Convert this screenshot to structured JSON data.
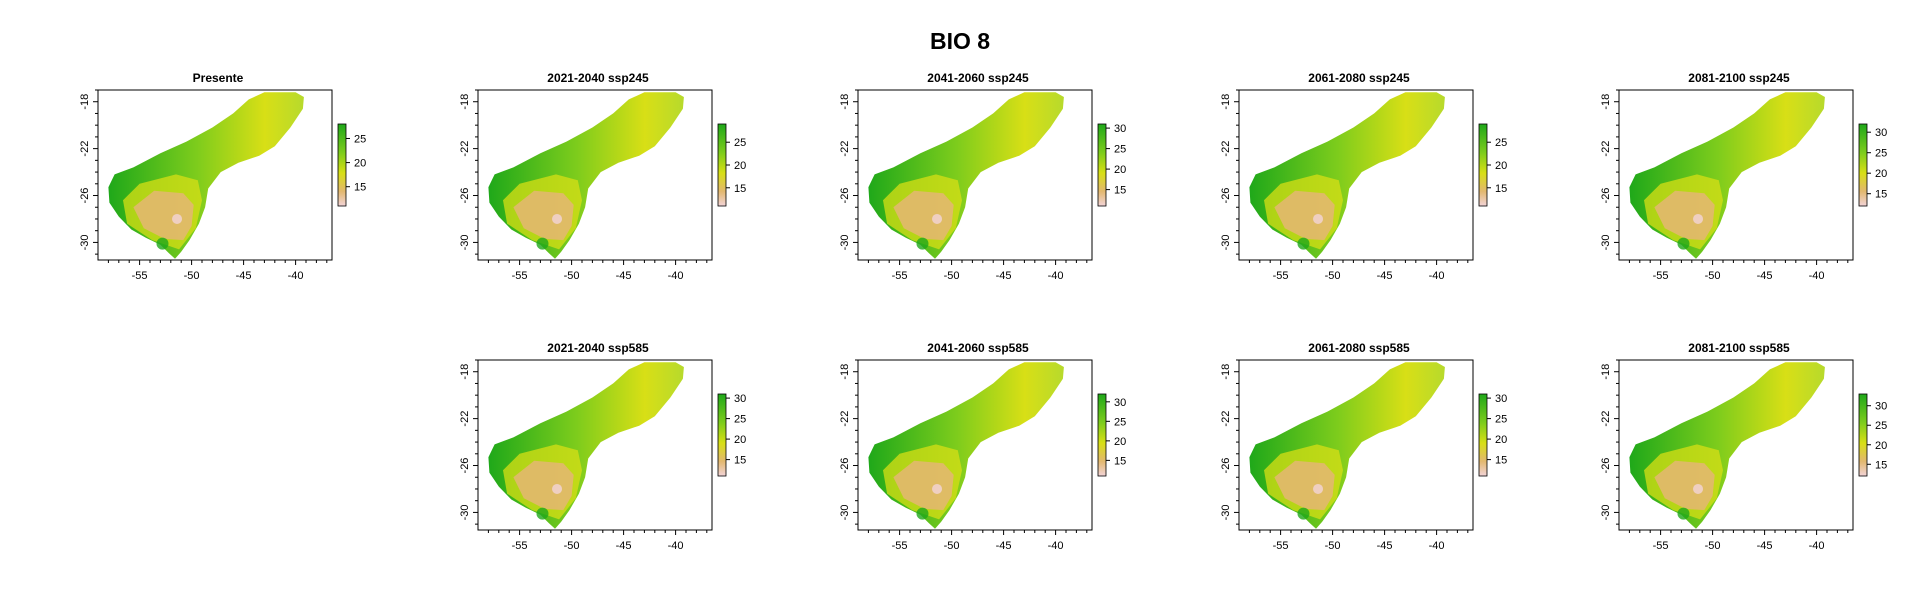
{
  "title": "BIO 8",
  "x_axis_ticks": [
    "-55",
    "-50",
    "-45",
    "-40"
  ],
  "y_axis_ticks": [
    "-18",
    "-22",
    "-26",
    "-30"
  ],
  "x_tick_values": [
    -55,
    -50,
    -45,
    -40
  ],
  "y_tick_values": [
    -18,
    -22,
    -26,
    -30
  ],
  "xlim": [
    -59,
    -36.5
  ],
  "ylim": [
    -31.5,
    -17
  ],
  "colors": {
    "high": "#1fa81a",
    "mid_high": "#7dcc1c",
    "mid": "#d8df16",
    "mid_low": "#e2b86e",
    "low": "#f2d4d8"
  },
  "panels": [
    {
      "title": "Presente",
      "legend_ticks": [
        "25",
        "20",
        "15"
      ],
      "legend_values": [
        25,
        20,
        15
      ],
      "legend_range": [
        11,
        28
      ]
    },
    {
      "title": "2021-2040 ssp245",
      "legend_ticks": [
        "25",
        "20",
        "15"
      ],
      "legend_values": [
        25,
        20,
        15
      ],
      "legend_range": [
        11,
        29
      ]
    },
    {
      "title": "2041-2060 ssp245",
      "legend_ticks": [
        "30",
        "25",
        "20",
        "15"
      ],
      "legend_values": [
        30,
        25,
        20,
        15
      ],
      "legend_range": [
        11,
        31
      ]
    },
    {
      "title": "2061-2080 ssp245",
      "legend_ticks": [
        "25",
        "20",
        "15"
      ],
      "legend_values": [
        25,
        20,
        15
      ],
      "legend_range": [
        11,
        29
      ]
    },
    {
      "title": "2081-2100 ssp245",
      "legend_ticks": [
        "30",
        "25",
        "20",
        "15"
      ],
      "legend_values": [
        30,
        25,
        20,
        15
      ],
      "legend_range": [
        12,
        32
      ]
    },
    {
      "title": "2021-2040 ssp585",
      "legend_ticks": [
        "30",
        "25",
        "20",
        "15"
      ],
      "legend_values": [
        30,
        25,
        20,
        15
      ],
      "legend_range": [
        11,
        31
      ]
    },
    {
      "title": "2041-2060 ssp585",
      "legend_ticks": [
        "30",
        "25",
        "20",
        "15"
      ],
      "legend_values": [
        30,
        25,
        20,
        15
      ],
      "legend_range": [
        11,
        32
      ]
    },
    {
      "title": "2061-2080 ssp585",
      "legend_ticks": [
        "30",
        "25",
        "20",
        "15"
      ],
      "legend_values": [
        30,
        25,
        20,
        15
      ],
      "legend_range": [
        11,
        31
      ]
    },
    {
      "title": "2081-2100 ssp585",
      "legend_ticks": [
        "30",
        "25",
        "20",
        "15"
      ],
      "legend_values": [
        30,
        25,
        20,
        15
      ],
      "legend_range": [
        12,
        33
      ]
    }
  ]
}
